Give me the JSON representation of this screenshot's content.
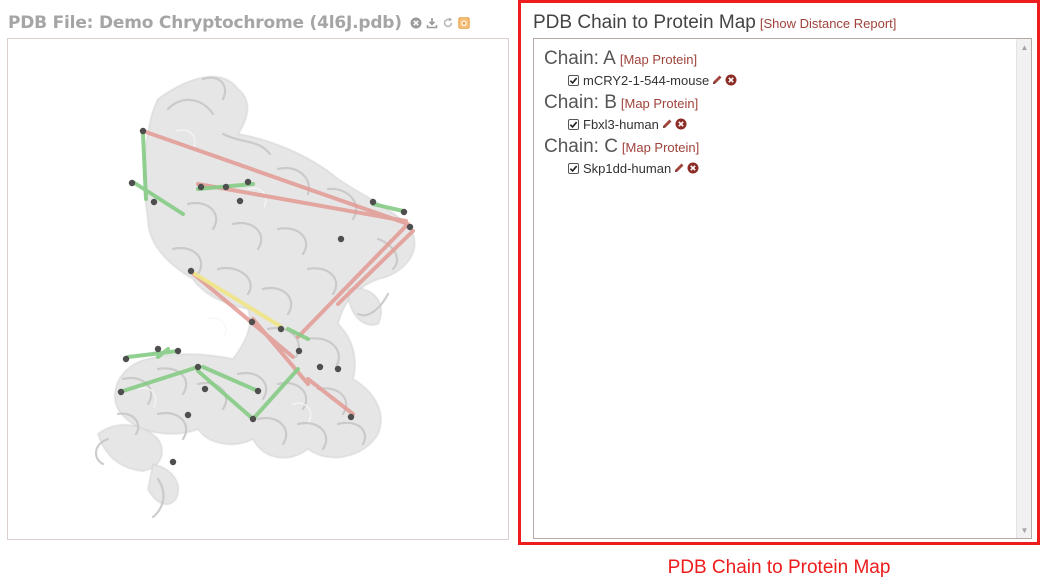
{
  "pdb_file": {
    "title": "PDB File: Demo Chryptochrome (4l6J.pdb)",
    "icons": [
      "remove-icon",
      "download-icon",
      "reset-view-icon",
      "screenshot-icon"
    ]
  },
  "panel": {
    "title": "PDB Chain to Protein Map",
    "distance_link": "[Show Distance Report]",
    "chains": [
      {
        "label": "Chain: A",
        "map_link": "[Map Protein]",
        "proteins": [
          {
            "name": "mCRY2-1-544-mouse",
            "checked": true
          }
        ]
      },
      {
        "label": "Chain: B",
        "map_link": "[Map Protein]",
        "proteins": [
          {
            "name": "Fbxl3-human",
            "checked": true
          }
        ]
      },
      {
        "label": "Chain: C",
        "map_link": "[Map Protein]",
        "proteins": [
          {
            "name": "Skp1dd-human",
            "checked": true
          }
        ]
      }
    ]
  },
  "caption": "PDB Chain to Protein Map",
  "colors": {
    "accent_red": "#ee1c1c",
    "link": "#a0433b",
    "crosslink_green": "#7ccd7c",
    "crosslink_red": "#e59a95",
    "crosslink_yellow": "#f0e68c"
  }
}
